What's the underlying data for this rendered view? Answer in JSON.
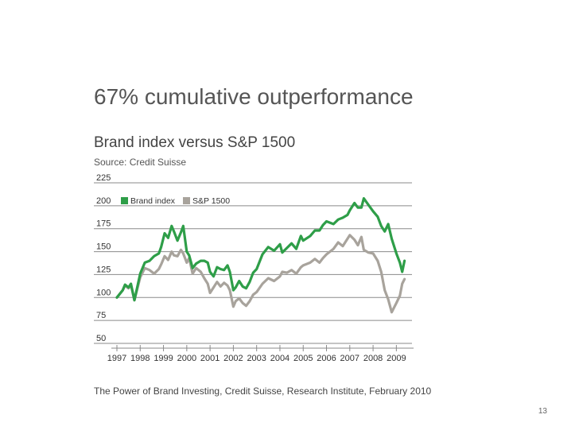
{
  "slide": {
    "title": "67% cumulative outperformance",
    "subtitle": "Brand index versus S&P 1500",
    "source": "Source: Credit Suisse",
    "footnote": "The Power of Brand Investing, Credit Suisse, Research Institute, February 2010",
    "page_number": "13"
  },
  "chart_data": {
    "type": "line",
    "ylim": [
      50,
      225
    ],
    "yticks": [
      225,
      200,
      175,
      150,
      125,
      100,
      75,
      50
    ],
    "xlim": [
      1997.0,
      2009.5
    ],
    "xtick_labels": [
      "1997",
      "1998",
      "1999",
      "2000",
      "2001",
      "2002",
      "2003",
      "2004",
      "2005",
      "2006",
      "2007",
      "2008",
      "2009"
    ],
    "grid": true,
    "legend_position": "top-left",
    "series": [
      {
        "name": "Brand index",
        "color": "#2e9e48",
        "x": [
          1997.0,
          1997.25,
          1997.35,
          1997.5,
          1997.6,
          1997.75,
          1998.0,
          1998.2,
          1998.4,
          1998.6,
          1998.8,
          1998.9,
          1999.05,
          1999.2,
          1999.35,
          1999.45,
          1999.6,
          1999.75,
          1999.85,
          2000.0,
          2000.1,
          2000.25,
          2000.4,
          2000.6,
          2000.75,
          2000.9,
          2001.0,
          2001.15,
          2001.3,
          2001.45,
          2001.6,
          2001.75,
          2001.85,
          2002.0,
          2002.1,
          2002.25,
          2002.4,
          2002.55,
          2002.7,
          2002.85,
          2003.0,
          2003.25,
          2003.5,
          2003.75,
          2004.0,
          2004.1,
          2004.3,
          2004.5,
          2004.7,
          2004.9,
          2005.0,
          2005.3,
          2005.5,
          2005.7,
          2005.85,
          2006.0,
          2006.3,
          2006.5,
          2006.7,
          2006.9,
          2007.0,
          2007.2,
          2007.35,
          2007.5,
          2007.6,
          2007.8,
          2008.0,
          2008.2,
          2008.35,
          2008.5,
          2008.65,
          2008.8,
          2009.0,
          2009.15,
          2009.25,
          2009.35
        ],
        "values": [
          100,
          108,
          114,
          111,
          115,
          97,
          126,
          138,
          140,
          145,
          148,
          155,
          170,
          165,
          178,
          172,
          162,
          171,
          178,
          150,
          146,
          132,
          137,
          140,
          140,
          138,
          128,
          123,
          133,
          131,
          130,
          135,
          128,
          108,
          111,
          118,
          112,
          110,
          117,
          127,
          131,
          147,
          155,
          151,
          158,
          149,
          154,
          159,
          153,
          167,
          162,
          167,
          173,
          173,
          179,
          183,
          180,
          185,
          187,
          190,
          195,
          203,
          198,
          198,
          208,
          201,
          194,
          188,
          178,
          172,
          180,
          164,
          148,
          138,
          128,
          140
        ],
        "values_note": "",
        "points": [
          [
            1997.0,
            100
          ],
          [
            1997.25,
            108
          ],
          [
            1997.35,
            114
          ],
          [
            1997.5,
            111
          ],
          [
            1997.6,
            115
          ],
          [
            1997.75,
            97
          ],
          [
            1998.0,
            126
          ],
          [
            1998.2,
            138
          ],
          [
            1998.4,
            140
          ],
          [
            1998.6,
            145
          ],
          [
            1998.8,
            148
          ],
          [
            1998.9,
            155
          ],
          [
            1999.05,
            170
          ],
          [
            1999.2,
            165
          ],
          [
            1999.35,
            178
          ],
          [
            1999.45,
            172
          ],
          [
            1999.6,
            162
          ],
          [
            1999.75,
            171
          ],
          [
            1999.85,
            178
          ],
          [
            2000.0,
            150
          ],
          [
            2000.1,
            146
          ],
          [
            2000.25,
            132
          ],
          [
            2000.4,
            137
          ],
          [
            2000.6,
            140
          ],
          [
            2000.75,
            140
          ],
          [
            2000.9,
            138
          ],
          [
            2001.0,
            128
          ],
          [
            2001.15,
            123
          ],
          [
            2001.3,
            133
          ],
          [
            2001.45,
            131
          ],
          [
            2001.6,
            130
          ],
          [
            2001.75,
            135
          ],
          [
            2001.85,
            128
          ],
          [
            2002.0,
            108
          ],
          [
            2002.1,
            111
          ],
          [
            2002.25,
            118
          ],
          [
            2002.4,
            112
          ],
          [
            2002.55,
            110
          ],
          [
            2002.7,
            117
          ],
          [
            2002.85,
            127
          ],
          [
            2003.0,
            131
          ],
          [
            2003.25,
            147
          ],
          [
            2003.5,
            155
          ],
          [
            2003.75,
            151
          ],
          [
            2004.0,
            158
          ],
          [
            2004.1,
            149
          ],
          [
            2004.3,
            154
          ],
          [
            2004.5,
            159
          ],
          [
            2004.7,
            153
          ],
          [
            2004.9,
            167
          ],
          [
            2005.0,
            162
          ],
          [
            2005.3,
            167
          ],
          [
            2005.5,
            173
          ],
          [
            2005.7,
            173
          ],
          [
            2005.85,
            179
          ],
          [
            2006.0,
            183
          ],
          [
            2006.3,
            180
          ],
          [
            2006.5,
            185
          ],
          [
            2006.7,
            187
          ],
          [
            2006.9,
            190
          ],
          [
            2007.0,
            195
          ],
          [
            2007.2,
            203
          ],
          [
            2007.35,
            198
          ],
          [
            2007.5,
            198
          ],
          [
            2007.6,
            208
          ],
          [
            2007.8,
            201
          ],
          [
            2008.0,
            194
          ],
          [
            2008.2,
            188
          ],
          [
            2008.35,
            178
          ],
          [
            2008.5,
            172
          ],
          [
            2008.65,
            180
          ],
          [
            2008.8,
            164
          ],
          [
            2009.0,
            148
          ],
          [
            2009.15,
            138
          ],
          [
            2009.25,
            128
          ],
          [
            2009.35,
            140
          ]
        ]
      },
      {
        "name": "S&P 1500",
        "color": "#a8a39c",
        "points": [
          [
            1997.0,
            100
          ],
          [
            1997.25,
            108
          ],
          [
            1997.35,
            113
          ],
          [
            1997.5,
            110
          ],
          [
            1997.6,
            114
          ],
          [
            1997.75,
            97
          ],
          [
            1998.0,
            122
          ],
          [
            1998.2,
            132
          ],
          [
            1998.4,
            130
          ],
          [
            1998.6,
            126
          ],
          [
            1998.8,
            131
          ],
          [
            1998.9,
            136
          ],
          [
            1999.05,
            145
          ],
          [
            1999.2,
            141
          ],
          [
            1999.35,
            150
          ],
          [
            1999.45,
            146
          ],
          [
            1999.6,
            145
          ],
          [
            1999.75,
            152
          ],
          [
            1999.85,
            148
          ],
          [
            2000.0,
            138
          ],
          [
            2000.1,
            143
          ],
          [
            2000.25,
            126
          ],
          [
            2000.4,
            132
          ],
          [
            2000.6,
            128
          ],
          [
            2000.75,
            121
          ],
          [
            2000.9,
            115
          ],
          [
            2001.0,
            105
          ],
          [
            2001.15,
            111
          ],
          [
            2001.3,
            117
          ],
          [
            2001.45,
            112
          ],
          [
            2001.6,
            116
          ],
          [
            2001.75,
            113
          ],
          [
            2001.85,
            108
          ],
          [
            2002.0,
            90
          ],
          [
            2002.1,
            96
          ],
          [
            2002.25,
            99
          ],
          [
            2002.4,
            94
          ],
          [
            2002.55,
            91
          ],
          [
            2002.7,
            96
          ],
          [
            2002.85,
            103
          ],
          [
            2003.0,
            106
          ],
          [
            2003.25,
            115
          ],
          [
            2003.5,
            121
          ],
          [
            2003.75,
            118
          ],
          [
            2004.0,
            123
          ],
          [
            2004.1,
            128
          ],
          [
            2004.3,
            127
          ],
          [
            2004.5,
            130
          ],
          [
            2004.7,
            126
          ],
          [
            2004.9,
            133
          ],
          [
            2005.0,
            135
          ],
          [
            2005.3,
            138
          ],
          [
            2005.5,
            142
          ],
          [
            2005.7,
            138
          ],
          [
            2005.85,
            143
          ],
          [
            2006.0,
            147
          ],
          [
            2006.3,
            153
          ],
          [
            2006.5,
            160
          ],
          [
            2006.7,
            156
          ],
          [
            2006.9,
            164
          ],
          [
            2007.0,
            168
          ],
          [
            2007.2,
            163
          ],
          [
            2007.35,
            157
          ],
          [
            2007.5,
            166
          ],
          [
            2007.6,
            152
          ],
          [
            2007.8,
            149
          ],
          [
            2008.0,
            148
          ],
          [
            2008.2,
            140
          ],
          [
            2008.35,
            128
          ],
          [
            2008.5,
            108
          ],
          [
            2008.65,
            98
          ],
          [
            2008.8,
            84
          ],
          [
            2009.0,
            94
          ],
          [
            2009.15,
            102
          ],
          [
            2009.25,
            115
          ],
          [
            2009.35,
            120
          ]
        ]
      }
    ]
  }
}
